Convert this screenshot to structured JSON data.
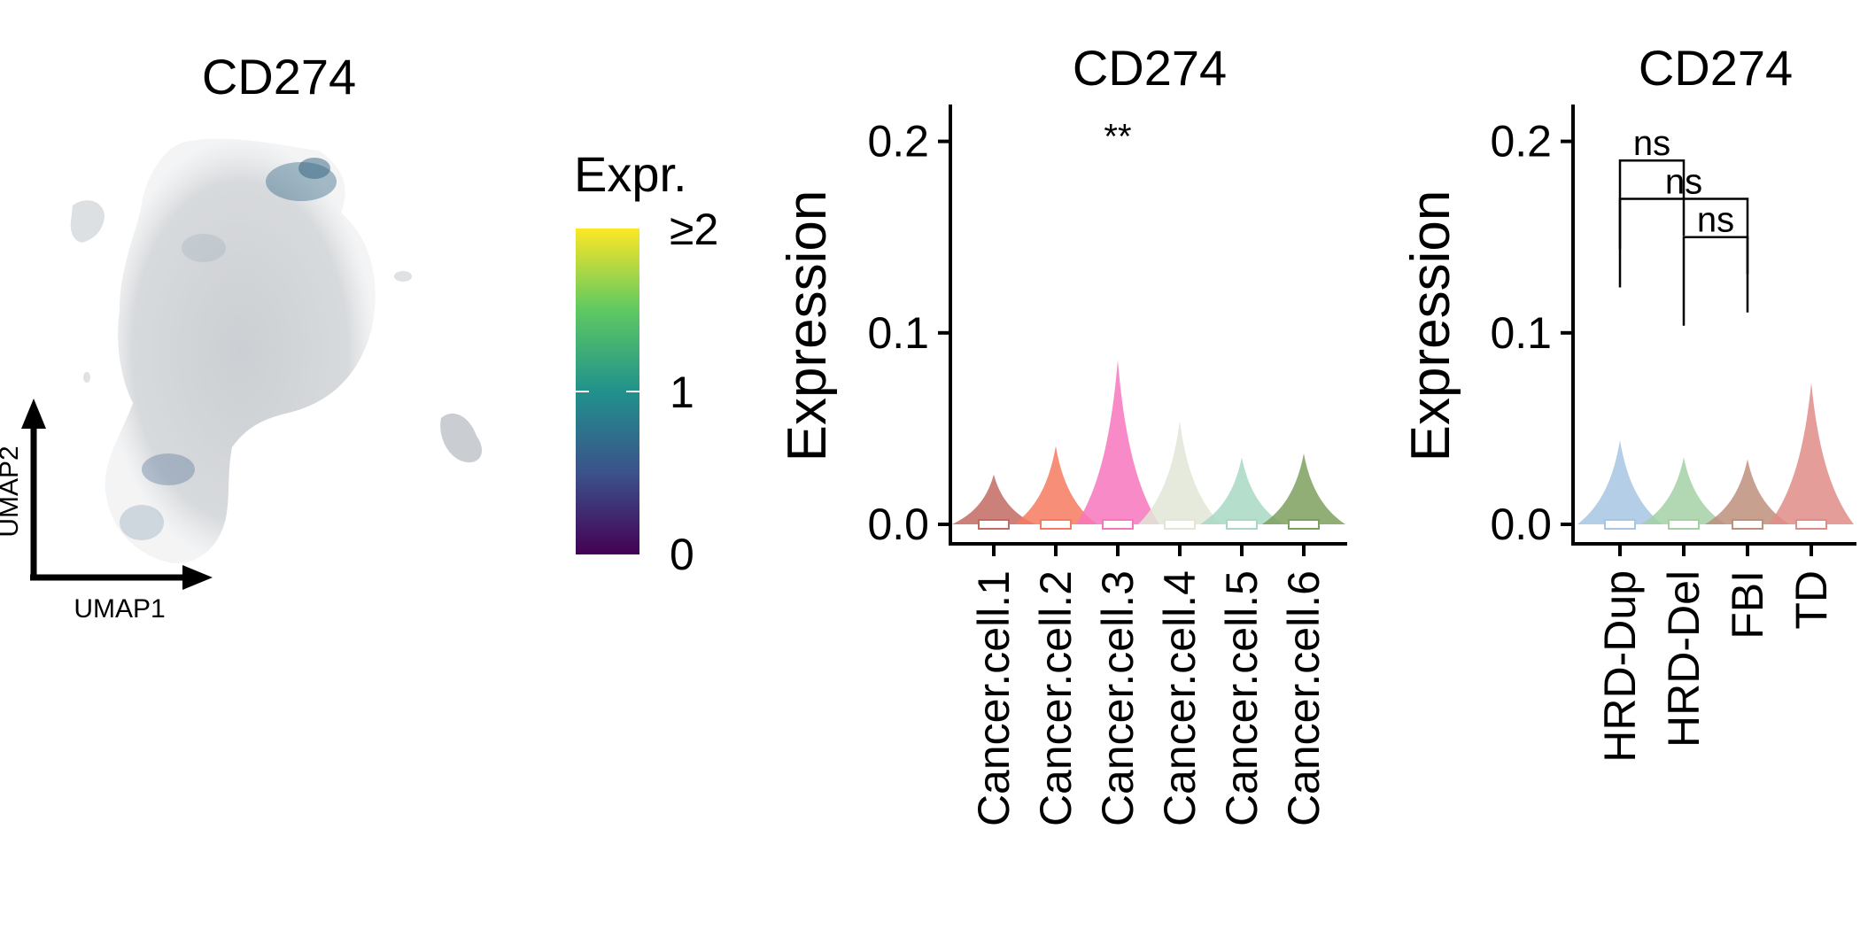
{
  "chart_data": [
    {
      "type": "scatter",
      "title": "CD274",
      "xlabel": "UMAP1",
      "ylabel": "UMAP2",
      "legend": {
        "title": "Expr.",
        "ticks": [
          "0",
          "1",
          "≥2"
        ],
        "range": [
          0,
          2
        ],
        "placement": "right"
      },
      "colors": {
        "low": "#440154",
        "mid": "#21918c",
        "high": "#fde725",
        "background_cells": "#d4d6d8"
      }
    },
    {
      "type": "violin",
      "title": "CD274",
      "xlabel": "",
      "ylabel": "Expression",
      "ylim": [
        0,
        0.21
      ],
      "yticks": [
        "0.0",
        "0.1",
        "0.2"
      ],
      "categories": [
        "Cancer.cell.1",
        "Cancer.cell.2",
        "Cancer.cell.3",
        "Cancer.cell.4",
        "Cancer.cell.5",
        "Cancer.cell.6"
      ],
      "max_values": [
        0.026,
        0.041,
        0.086,
        0.054,
        0.035,
        0.037
      ],
      "colors": [
        "#c26a62",
        "#f47a60",
        "#f777bd",
        "#e1e6d6",
        "#a8d8c4",
        "#7ea05e"
      ],
      "annotations": [
        {
          "label": "**",
          "y": 0.2
        }
      ]
    },
    {
      "type": "violin",
      "title": "CD274",
      "xlabel": "",
      "ylabel": "Expression",
      "ylim": [
        0,
        0.21
      ],
      "yticks": [
        "0.0",
        "0.1",
        "0.2"
      ],
      "categories": [
        "HRD-Dup",
        "HRD-Del",
        "FBI",
        "TD"
      ],
      "max_values": [
        0.044,
        0.035,
        0.034,
        0.074
      ],
      "colors": [
        "#a7c6e3",
        "#a3d1a4",
        "#bd8f7d",
        "#e08c88"
      ],
      "comparisons": [
        {
          "groups": [
            "HRD-Dup",
            "HRD-Del"
          ],
          "label": "ns",
          "y": 0.19
        },
        {
          "groups": [
            "HRD-Dup",
            "FBI"
          ],
          "label": "ns",
          "y": 0.17
        },
        {
          "groups": [
            "HRD-Del",
            "FBI"
          ],
          "label": "ns",
          "y": 0.15
        }
      ]
    }
  ]
}
